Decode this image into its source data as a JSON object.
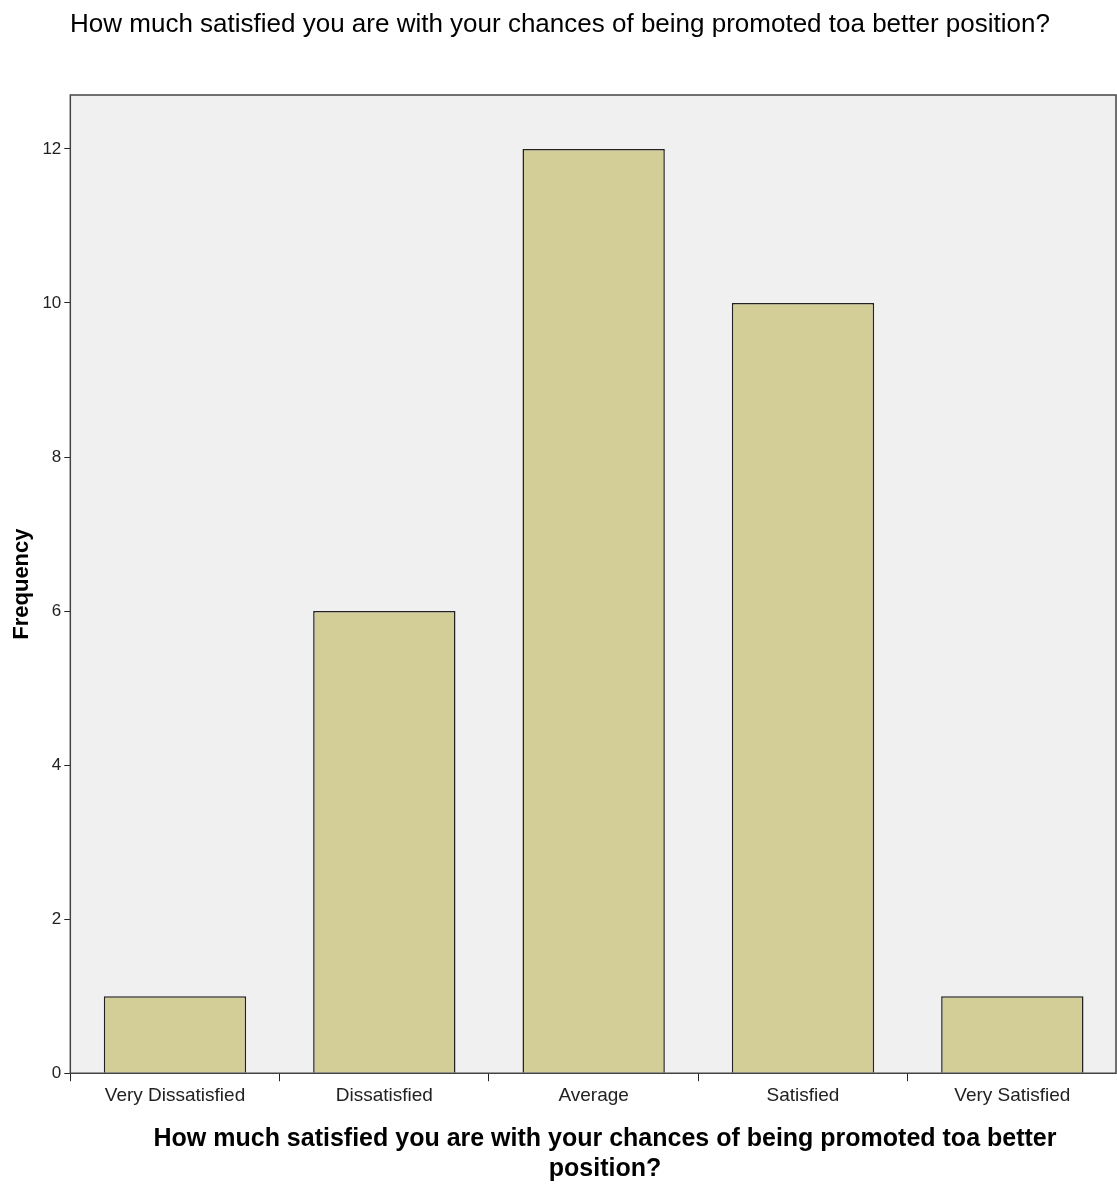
{
  "chart_data": {
    "type": "bar",
    "title": "How much satisfied you are with your chances of being promoted toa better position?",
    "xlabel": "How much satisfied you are with your chances of being promoted toa better position?",
    "ylabel": "Frequency",
    "categories": [
      "Very Dissatisfied",
      "Dissatisfied",
      "Average",
      "Satisfied",
      "Very Satisfied"
    ],
    "values": [
      1,
      6,
      12,
      10,
      1
    ],
    "color": "#d3ce97",
    "ylim": [
      0,
      12.7
    ],
    "yticks": [
      0,
      2,
      4,
      6,
      8,
      10,
      12
    ],
    "grid": false,
    "legend": false
  }
}
